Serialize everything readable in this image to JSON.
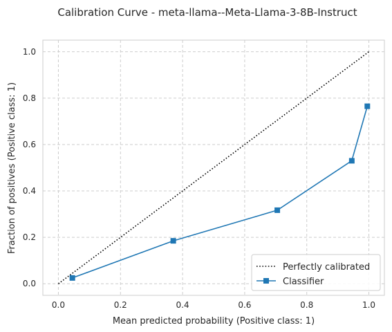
{
  "chart_data": {
    "type": "line",
    "title": "Calibration Curve - meta-llama--Meta-Llama-3-8B-Instruct",
    "xlabel": "Mean predicted probability (Positive class: 1)",
    "ylabel": "Fraction of positives (Positive class: 1)",
    "xlim": [
      -0.05,
      1.05
    ],
    "ylim": [
      -0.05,
      1.05
    ],
    "xticks": [
      "0.0",
      "0.2",
      "0.4",
      "0.6",
      "0.8",
      "1.0"
    ],
    "yticks": [
      "0.0",
      "0.2",
      "0.4",
      "0.6",
      "0.8",
      "1.0"
    ],
    "grid": true,
    "legend_position": "lower-right",
    "series": [
      {
        "name": "Perfectly calibrated",
        "style": "dotted",
        "color": "#000000",
        "x": [
          0,
          1
        ],
        "y": [
          0,
          1
        ]
      },
      {
        "name": "Classifier",
        "style": "solid",
        "marker": "square",
        "color": "#1f77b4",
        "x": [
          0.045,
          0.37,
          0.705,
          0.945,
          0.995
        ],
        "y": [
          0.025,
          0.185,
          0.317,
          0.53,
          0.765
        ]
      }
    ]
  }
}
